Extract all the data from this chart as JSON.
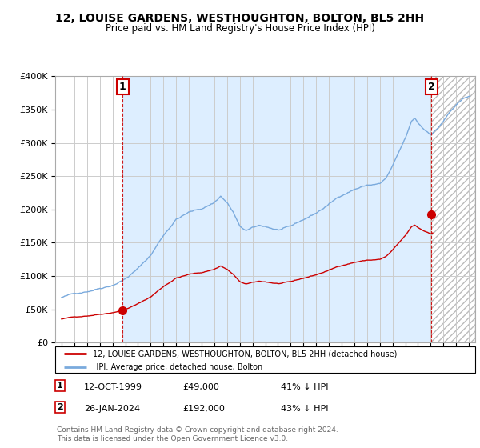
{
  "title": "12, LOUISE GARDENS, WESTHOUGHTON, BOLTON, BL5 2HH",
  "subtitle": "Price paid vs. HM Land Registry's House Price Index (HPI)",
  "legend_label_red": "12, LOUISE GARDENS, WESTHOUGHTON, BOLTON, BL5 2HH (detached house)",
  "legend_label_blue": "HPI: Average price, detached house, Bolton",
  "annotation1_date": "12-OCT-1999",
  "annotation1_price": "£49,000",
  "annotation1_hpi": "41% ↓ HPI",
  "annotation2_date": "26-JAN-2024",
  "annotation2_price": "£192,000",
  "annotation2_hpi": "43% ↓ HPI",
  "footnote": "Contains HM Land Registry data © Crown copyright and database right 2024.\nThis data is licensed under the Open Government Licence v3.0.",
  "red_color": "#cc0000",
  "blue_color": "#7aaadd",
  "background_color": "#ffffff",
  "grid_color": "#cccccc",
  "owned_bg_color": "#ddeeff",
  "sale1_x": 1999.79,
  "sale1_y": 49000,
  "sale2_x": 2024.07,
  "sale2_y": 192000,
  "ylim": [
    0,
    400000
  ],
  "xlim": [
    1994.5,
    2027.5
  ]
}
